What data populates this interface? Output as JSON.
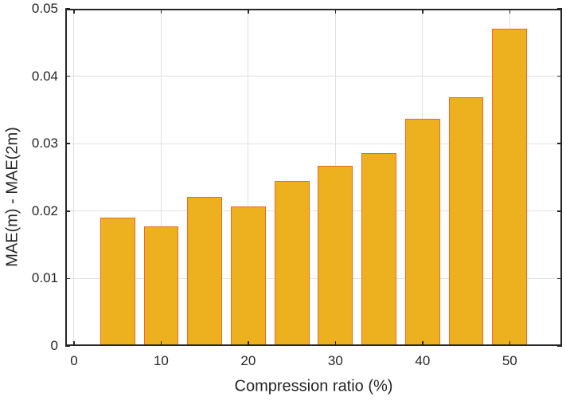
{
  "chart_data": {
    "type": "bar",
    "title": "",
    "xlabel": "Compression ratio (%)",
    "ylabel": "MAE(m) - MAE(2m)",
    "x": [
      5,
      10,
      15,
      20,
      25,
      30,
      35,
      40,
      45,
      50
    ],
    "values": [
      0.019,
      0.0177,
      0.0221,
      0.0207,
      0.0245,
      0.0267,
      0.0286,
      0.0337,
      0.0369,
      0.047
    ],
    "bar_width_data_units": 4,
    "xlim": [
      -1,
      56
    ],
    "ylim": [
      0,
      0.05
    ],
    "xticks": {
      "values": [
        0,
        10,
        20,
        30,
        40,
        50
      ],
      "labels": [
        "0",
        "10",
        "20",
        "30",
        "40",
        "50"
      ]
    },
    "yticks": {
      "values": [
        0,
        0.01,
        0.02,
        0.03,
        0.04,
        0.05
      ],
      "labels": [
        "0",
        "0.01",
        "0.02",
        "0.03",
        "0.04",
        "0.05"
      ]
    },
    "grid": true,
    "legend": null,
    "colors": {
      "bar_fill": "#EDB120",
      "bar_edge": "#F26722",
      "grid": "#E0E0E0",
      "axis": "#262626",
      "tick_label": "#262626",
      "axis_label": "#262626",
      "background": "#FFFFFF"
    }
  }
}
